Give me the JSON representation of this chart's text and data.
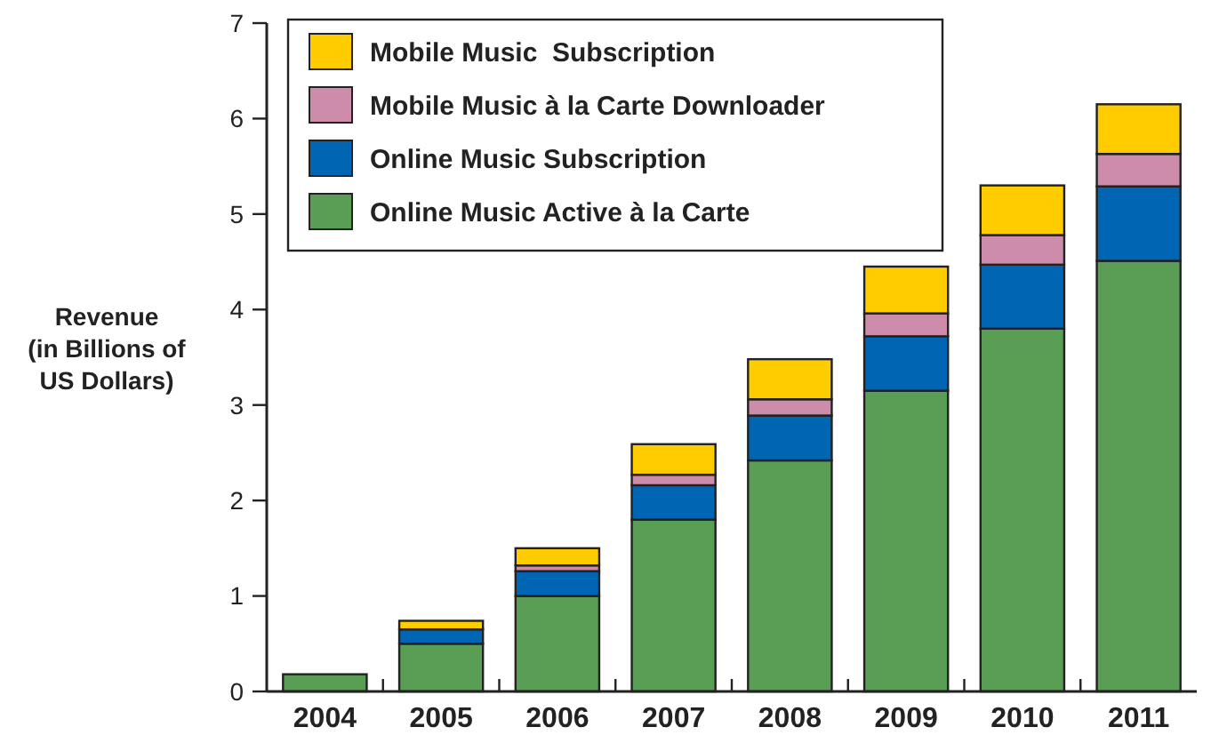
{
  "chart_data": {
    "type": "bar",
    "stacked": true,
    "ylabel": "Revenue\n(in Billions of\nUS Dollars)",
    "categories": [
      "2004",
      "2005",
      "2006",
      "2007",
      "2008",
      "2009",
      "2010",
      "2011"
    ],
    "series": [
      {
        "name": "Online Music Active à la Carte",
        "color": "#5a9e55",
        "values": [
          0.18,
          0.5,
          1.0,
          1.8,
          2.42,
          3.15,
          3.8,
          4.51
        ]
      },
      {
        "name": "Online Music Subscription",
        "color": "#0066b3",
        "values": [
          null,
          0.15,
          0.26,
          0.36,
          0.47,
          0.57,
          0.67,
          0.78
        ]
      },
      {
        "name": "Mobile Music à la Carte Downloader",
        "color": "#cc8caa",
        "values": [
          0,
          null,
          0.06,
          0.11,
          0.17,
          0.24,
          0.31,
          0.34
        ]
      },
      {
        "name": "Mobile Music  Subscription",
        "color": "#ffcc00",
        "values": [
          null,
          0.09,
          0.18,
          0.32,
          0.42,
          0.49,
          0.52,
          0.52
        ]
      }
    ],
    "ylim": [
      0,
      7
    ],
    "yticks": [
      0,
      1,
      2,
      3,
      4,
      5,
      6,
      7
    ],
    "grid": false,
    "legend": "top left"
  }
}
